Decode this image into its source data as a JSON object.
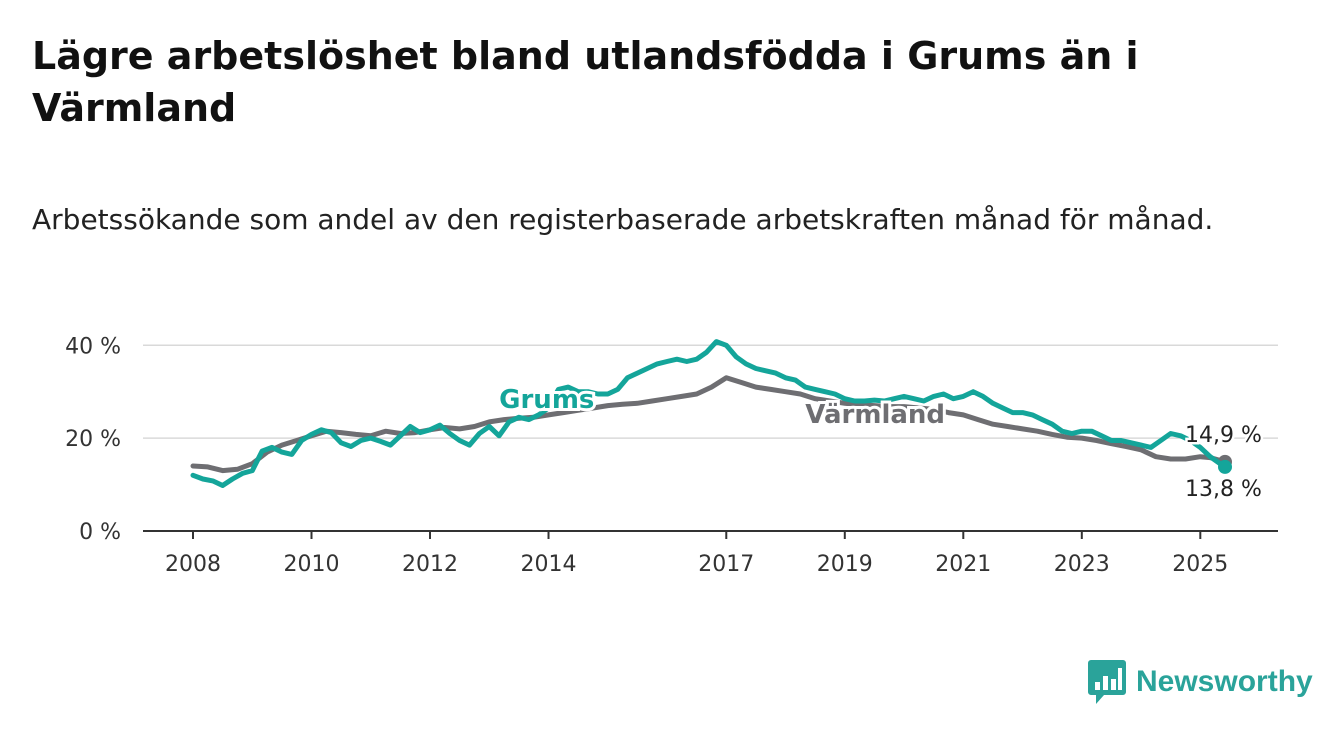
{
  "header": {
    "title": "Lägre arbetslöshet bland utlandsfödda i Grums än i Värmland",
    "subtitle": "Arbetssökande som andel av den registerbaserade arbetskraften månad för månad."
  },
  "brand": {
    "name": "Newsworthy",
    "icon": "newsworthy-logo-icon",
    "color": "#2aa39a"
  },
  "chart_data": {
    "type": "line",
    "title": "Lägre arbetslöshet bland utlandsfödda i Grums än i Värmland",
    "subtitle": "Arbetssökande som andel av den registerbaserade arbetskraften månad för månad.",
    "xlabel": "",
    "ylabel": "",
    "x_ticks": [
      "2008",
      "2010",
      "2012",
      "2014",
      "2017",
      "2019",
      "2021",
      "2023",
      "2025"
    ],
    "y_ticks": [
      "0 %",
      "20 %",
      "40 %"
    ],
    "y_tick_values": [
      0,
      20,
      40
    ],
    "xlim": [
      "2008-01",
      "2025-06"
    ],
    "ylim": [
      0,
      42
    ],
    "grid": true,
    "legend": "direct labels on lines",
    "series": [
      {
        "name": "Grums",
        "color": "#14a59a",
        "end_label": "13,8 %",
        "points": [
          [
            "2008-01",
            12.0
          ],
          [
            "2008-03",
            11.2
          ],
          [
            "2008-05",
            10.8
          ],
          [
            "2008-07",
            9.8
          ],
          [
            "2008-09",
            11.2
          ],
          [
            "2008-11",
            12.4
          ],
          [
            "2009-01",
            13.0
          ],
          [
            "2009-03",
            17.2
          ],
          [
            "2009-05",
            18.0
          ],
          [
            "2009-07",
            17.0
          ],
          [
            "2009-09",
            16.5
          ],
          [
            "2009-11",
            19.5
          ],
          [
            "2010-01",
            20.8
          ],
          [
            "2010-03",
            21.8
          ],
          [
            "2010-05",
            21.2
          ],
          [
            "2010-07",
            19.0
          ],
          [
            "2010-09",
            18.2
          ],
          [
            "2010-11",
            19.5
          ],
          [
            "2011-01",
            20.0
          ],
          [
            "2011-03",
            19.3
          ],
          [
            "2011-05",
            18.5
          ],
          [
            "2011-07",
            20.5
          ],
          [
            "2011-09",
            22.5
          ],
          [
            "2011-11",
            21.2
          ],
          [
            "2012-01",
            21.8
          ],
          [
            "2012-03",
            22.8
          ],
          [
            "2012-05",
            21.0
          ],
          [
            "2012-07",
            19.5
          ],
          [
            "2012-09",
            18.5
          ],
          [
            "2012-11",
            21.0
          ],
          [
            "2013-01",
            22.5
          ],
          [
            "2013-03",
            20.5
          ],
          [
            "2013-05",
            23.5
          ],
          [
            "2013-07",
            24.5
          ],
          [
            "2013-09",
            24.0
          ],
          [
            "2013-11",
            25.0
          ],
          [
            "2014-01",
            26.5
          ],
          [
            "2014-03",
            30.5
          ],
          [
            "2014-05",
            31.0
          ],
          [
            "2014-07",
            30.0
          ],
          [
            "2014-09",
            30.0
          ],
          [
            "2014-11",
            29.5
          ],
          [
            "2015-01",
            29.5
          ],
          [
            "2015-03",
            30.5
          ],
          [
            "2015-05",
            33.0
          ],
          [
            "2015-07",
            34.0
          ],
          [
            "2015-09",
            35.0
          ],
          [
            "2015-11",
            36.0
          ],
          [
            "2016-01",
            36.5
          ],
          [
            "2016-03",
            37.0
          ],
          [
            "2016-05",
            36.5
          ],
          [
            "2016-07",
            37.0
          ],
          [
            "2016-09",
            38.5
          ],
          [
            "2016-11",
            40.8
          ],
          [
            "2017-01",
            40.0
          ],
          [
            "2017-03",
            37.5
          ],
          [
            "2017-05",
            36.0
          ],
          [
            "2017-07",
            35.0
          ],
          [
            "2017-09",
            34.5
          ],
          [
            "2017-11",
            34.0
          ],
          [
            "2018-01",
            33.0
          ],
          [
            "2018-03",
            32.5
          ],
          [
            "2018-05",
            31.0
          ],
          [
            "2018-07",
            30.5
          ],
          [
            "2018-09",
            30.0
          ],
          [
            "2018-11",
            29.5
          ],
          [
            "2019-01",
            28.5
          ],
          [
            "2019-03",
            28.0
          ],
          [
            "2019-05",
            28.0
          ],
          [
            "2019-07",
            28.2
          ],
          [
            "2019-09",
            28.0
          ],
          [
            "2019-11",
            28.5
          ],
          [
            "2020-01",
            29.0
          ],
          [
            "2020-03",
            28.5
          ],
          [
            "2020-05",
            28.0
          ],
          [
            "2020-07",
            29.0
          ],
          [
            "2020-09",
            29.5
          ],
          [
            "2020-11",
            28.5
          ],
          [
            "2021-01",
            29.0
          ],
          [
            "2021-03",
            30.0
          ],
          [
            "2021-05",
            29.0
          ],
          [
            "2021-07",
            27.5
          ],
          [
            "2021-09",
            26.5
          ],
          [
            "2021-11",
            25.5
          ],
          [
            "2022-01",
            25.5
          ],
          [
            "2022-03",
            25.0
          ],
          [
            "2022-05",
            24.0
          ],
          [
            "2022-07",
            23.0
          ],
          [
            "2022-09",
            21.5
          ],
          [
            "2022-11",
            21.0
          ],
          [
            "2023-01",
            21.5
          ],
          [
            "2023-03",
            21.5
          ],
          [
            "2023-05",
            20.5
          ],
          [
            "2023-07",
            19.5
          ],
          [
            "2023-09",
            19.5
          ],
          [
            "2023-11",
            19.0
          ],
          [
            "2024-01",
            18.5
          ],
          [
            "2024-03",
            18.0
          ],
          [
            "2024-05",
            19.5
          ],
          [
            "2024-07",
            21.0
          ],
          [
            "2024-09",
            20.5
          ],
          [
            "2024-11",
            19.5
          ],
          [
            "2025-01",
            18.0
          ],
          [
            "2025-03",
            16.0
          ],
          [
            "2025-05",
            14.5
          ],
          [
            "2025-06",
            13.8
          ]
        ]
      },
      {
        "name": "Värmland",
        "color": "#6e6e72",
        "end_label": "14,9 %",
        "points": [
          [
            "2008-01",
            14.0
          ],
          [
            "2008-04",
            13.8
          ],
          [
            "2008-07",
            13.0
          ],
          [
            "2008-10",
            13.3
          ],
          [
            "2009-01",
            14.5
          ],
          [
            "2009-04",
            17.0
          ],
          [
            "2009-07",
            18.5
          ],
          [
            "2009-10",
            19.5
          ],
          [
            "2010-01",
            20.5
          ],
          [
            "2010-04",
            21.5
          ],
          [
            "2010-07",
            21.2
          ],
          [
            "2010-10",
            20.8
          ],
          [
            "2011-01",
            20.5
          ],
          [
            "2011-04",
            21.5
          ],
          [
            "2011-07",
            21.0
          ],
          [
            "2011-10",
            21.2
          ],
          [
            "2012-01",
            21.8
          ],
          [
            "2012-04",
            22.3
          ],
          [
            "2012-07",
            22.0
          ],
          [
            "2012-10",
            22.5
          ],
          [
            "2013-01",
            23.5
          ],
          [
            "2013-04",
            24.0
          ],
          [
            "2013-07",
            24.3
          ],
          [
            "2013-10",
            24.5
          ],
          [
            "2014-01",
            25.0
          ],
          [
            "2014-04",
            25.5
          ],
          [
            "2014-07",
            26.0
          ],
          [
            "2014-10",
            26.5
          ],
          [
            "2015-01",
            27.0
          ],
          [
            "2015-04",
            27.3
          ],
          [
            "2015-07",
            27.5
          ],
          [
            "2015-10",
            28.0
          ],
          [
            "2016-01",
            28.5
          ],
          [
            "2016-04",
            29.0
          ],
          [
            "2016-07",
            29.5
          ],
          [
            "2016-10",
            31.0
          ],
          [
            "2017-01",
            33.0
          ],
          [
            "2017-04",
            32.0
          ],
          [
            "2017-07",
            31.0
          ],
          [
            "2017-10",
            30.5
          ],
          [
            "2018-01",
            30.0
          ],
          [
            "2018-04",
            29.5
          ],
          [
            "2018-07",
            28.5
          ],
          [
            "2018-10",
            28.0
          ],
          [
            "2019-01",
            27.5
          ],
          [
            "2019-04",
            27.2
          ],
          [
            "2019-07",
            27.0
          ],
          [
            "2019-10",
            26.8
          ],
          [
            "2020-01",
            26.8
          ],
          [
            "2020-04",
            26.5
          ],
          [
            "2020-07",
            26.2
          ],
          [
            "2020-10",
            25.5
          ],
          [
            "2021-01",
            25.0
          ],
          [
            "2021-04",
            24.0
          ],
          [
            "2021-07",
            23.0
          ],
          [
            "2021-10",
            22.5
          ],
          [
            "2022-01",
            22.0
          ],
          [
            "2022-04",
            21.5
          ],
          [
            "2022-07",
            20.8
          ],
          [
            "2022-10",
            20.2
          ],
          [
            "2023-01",
            20.0
          ],
          [
            "2023-04",
            19.5
          ],
          [
            "2023-07",
            18.8
          ],
          [
            "2023-10",
            18.2
          ],
          [
            "2024-01",
            17.5
          ],
          [
            "2024-04",
            16.0
          ],
          [
            "2024-07",
            15.5
          ],
          [
            "2024-10",
            15.5
          ],
          [
            "2025-01",
            16.0
          ],
          [
            "2025-03",
            15.8
          ],
          [
            "2025-06",
            14.9
          ]
        ]
      }
    ]
  }
}
